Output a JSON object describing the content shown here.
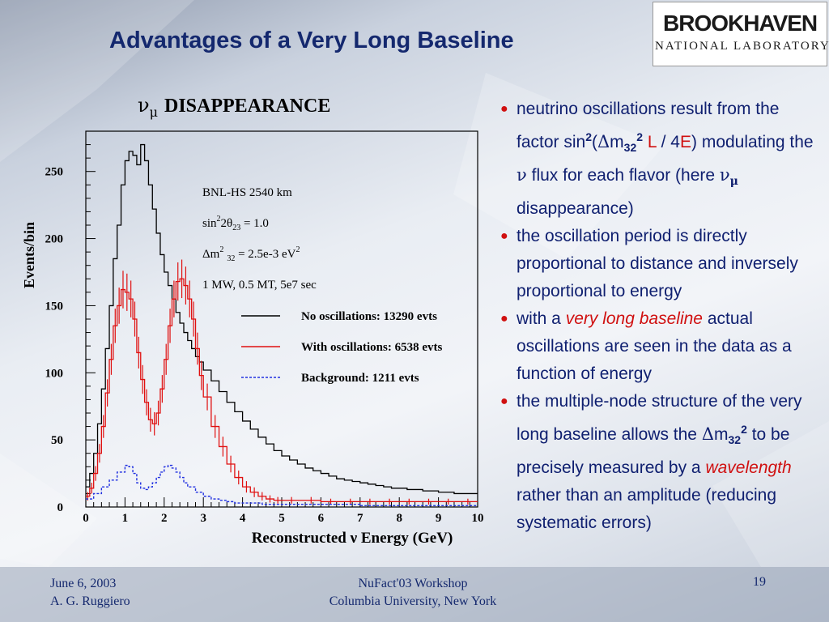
{
  "slide": {
    "title": "Advantages of a Very Long Baseline",
    "page_number": "19"
  },
  "logo": {
    "line1": "BROOKHAVEN",
    "line2": "NATIONAL LABORATORY"
  },
  "footer": {
    "date": "June 6, 2003",
    "author": "A. G. Ruggiero",
    "event": "NuFact'03 Workshop",
    "venue": "Columbia University, New York"
  },
  "bullets": {
    "b1_a": "neutrino oscillations result from the factor sin",
    "b1_b": "(",
    "b1_c": "m",
    "b1_d": "L",
    "b1_e": " / 4",
    "b1_f": "E",
    "b1_g": ") modulating the ",
    "b1_h": " flux for each flavor (here ",
    "b1_i": " disappearance)",
    "b2": "the oscillation period is directly proportional to distance and inversely proportional to energy",
    "b3_a": "with a ",
    "b3_b": "very long baseline",
    "b3_c": " actual oscillations are seen in the data as a function of energy",
    "b4_a": "the multiple-node structure of the very long baseline allows the ",
    "b4_b": "m",
    "b4_c": " to be precisely measured by a ",
    "b4_d": "wavelength",
    "b4_e": " rather than an amplitude (reducing systematic errors)",
    "sup2": "2",
    "sub32": "32",
    "delta": "Δ",
    "nu": "ν",
    "mu": "μ"
  },
  "chart_data": {
    "type": "line",
    "title": "νμ DISAPPEARANCE",
    "title_nu": "ν",
    "title_mu": "μ",
    "title_text": "DISAPPEARANCE",
    "xlabel": "Reconstructed  ν Energy (GeV)",
    "ylabel": "Events/bin",
    "xlim": [
      0,
      10
    ],
    "ylim": [
      0,
      280
    ],
    "x_ticks": [
      "0",
      "1",
      "2",
      "3",
      "4",
      "5",
      "6",
      "7",
      "8",
      "9",
      "10"
    ],
    "y_ticks": [
      "0",
      "50",
      "100",
      "150",
      "200",
      "250"
    ],
    "annotations": {
      "line1": "BNL-HS  2540 km",
      "line2_a": "sin",
      "line2_sup": "2",
      "line2_b": "2θ",
      "line2_sub": "23",
      "line2_c": " = 1.0",
      "line3_a": "Δm",
      "line3_sup": "2",
      "line3_sub": "32",
      "line3_b": " = 2.5e-3 eV",
      "line3_sup2": "2",
      "line4": "1 MW, 0.5 MT, 5e7 sec"
    },
    "legend": [
      {
        "name": "No oscillations: 13290 evts",
        "color": "#000000",
        "style": "solid"
      },
      {
        "name": "With oscillations: 6538 evts",
        "color": "#e01010",
        "style": "solid"
      },
      {
        "name": "Background: 1211 evts",
        "color": "#2030e0",
        "style": "dashed"
      }
    ],
    "legend_placement": "right",
    "grid": false,
    "series": [
      {
        "name": "No oscillations: 13290 evts",
        "color": "#000000",
        "x": [
          0.0,
          0.1,
          0.2,
          0.3,
          0.4,
          0.5,
          0.6,
          0.7,
          0.8,
          0.9,
          1.0,
          1.1,
          1.2,
          1.3,
          1.4,
          1.5,
          1.6,
          1.7,
          1.8,
          1.9,
          2.0,
          2.1,
          2.2,
          2.3,
          2.4,
          2.5,
          2.6,
          2.7,
          2.8,
          2.9,
          3.0,
          3.2,
          3.4,
          3.6,
          3.8,
          4.0,
          4.2,
          4.4,
          4.6,
          4.8,
          5.0,
          5.2,
          5.4,
          5.6,
          5.8,
          6.0,
          6.2,
          6.4,
          6.6,
          6.8,
          7.0,
          7.2,
          7.4,
          7.6,
          7.8,
          8.0,
          8.2,
          8.4,
          8.6,
          8.8,
          9.0,
          9.2,
          9.4,
          9.6,
          9.8,
          10.0
        ],
        "values": [
          15,
          25,
          40,
          62,
          88,
          118,
          150,
          185,
          210,
          240,
          258,
          265,
          262,
          255,
          270,
          258,
          240,
          222,
          204,
          188,
          175,
          165,
          155,
          145,
          137,
          130,
          124,
          118,
          112,
          108,
          102,
          94,
          86,
          78,
          71,
          64,
          58,
          52,
          47,
          42,
          38,
          35,
          32,
          29,
          27,
          25,
          23,
          21,
          20,
          19,
          18,
          17,
          16,
          15,
          14,
          14,
          13,
          13,
          12,
          12,
          11,
          11,
          10,
          10,
          10,
          10
        ]
      },
      {
        "name": "With oscillations: 6538 evts",
        "color": "#e01010",
        "x": [
          0.0,
          0.1,
          0.2,
          0.3,
          0.4,
          0.5,
          0.6,
          0.7,
          0.8,
          0.9,
          1.0,
          1.1,
          1.2,
          1.3,
          1.4,
          1.5,
          1.6,
          1.7,
          1.8,
          1.9,
          2.0,
          2.1,
          2.2,
          2.3,
          2.4,
          2.5,
          2.6,
          2.7,
          2.8,
          2.9,
          3.0,
          3.2,
          3.4,
          3.6,
          3.8,
          4.0,
          4.2,
          4.4,
          4.6,
          4.8,
          5.0,
          5.5,
          6.0,
          6.5,
          7.0,
          7.5,
          8.0,
          8.5,
          9.0,
          9.5,
          10.0
        ],
        "values": [
          8,
          14,
          25,
          40,
          60,
          85,
          110,
          135,
          150,
          162,
          160,
          155,
          140,
          115,
          95,
          78,
          65,
          62,
          70,
          88,
          110,
          135,
          155,
          168,
          170,
          165,
          155,
          140,
          118,
          98,
          82,
          60,
          45,
          32,
          22,
          15,
          11,
          8,
          6,
          5,
          5,
          5,
          4,
          4,
          4,
          4,
          4,
          4,
          4,
          4,
          4
        ]
      },
      {
        "name": "Background: 1211 evts",
        "color": "#2030e0",
        "x": [
          0.0,
          0.2,
          0.4,
          0.6,
          0.8,
          1.0,
          1.1,
          1.2,
          1.3,
          1.4,
          1.5,
          1.6,
          1.7,
          1.8,
          1.9,
          2.0,
          2.1,
          2.2,
          2.3,
          2.4,
          2.5,
          2.6,
          2.8,
          3.0,
          3.2,
          3.4,
          3.6,
          3.8,
          4.0,
          4.5,
          5.0,
          6.0,
          7.0,
          8.0,
          9.0,
          10.0
        ],
        "values": [
          6,
          10,
          15,
          20,
          26,
          31,
          30,
          25,
          18,
          14,
          13,
          15,
          18,
          22,
          26,
          30,
          31,
          29,
          26,
          22,
          18,
          15,
          11,
          8,
          6,
          5,
          4,
          3,
          3,
          2,
          2,
          2,
          1,
          1,
          1,
          1
        ]
      }
    ]
  }
}
